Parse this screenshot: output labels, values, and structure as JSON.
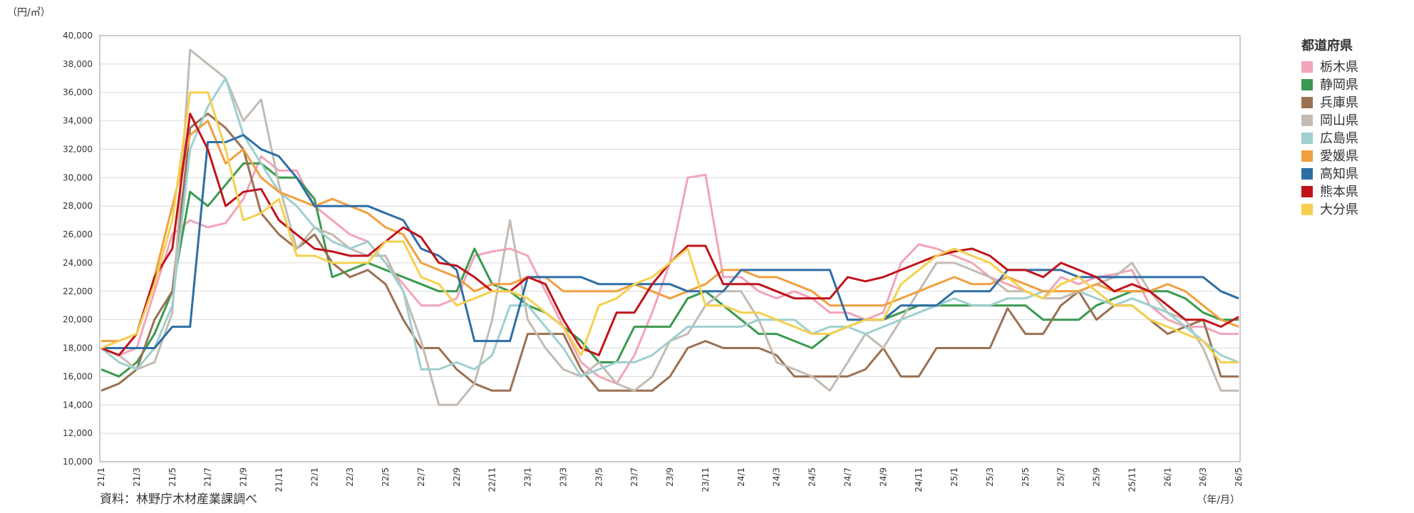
{
  "chart_data": {
    "type": "line",
    "y_unit": "（円/㎥）",
    "x_unit": "（年/月）",
    "source": "資料：林野庁木材産業課調べ",
    "legend_title": "都道府県",
    "legend": "right",
    "grid": true,
    "categories": [
      "21/1",
      null,
      "21/3",
      null,
      "21/5",
      null,
      "21/7",
      null,
      "21/9",
      null,
      "21/11",
      null,
      "22/1",
      null,
      "22/3",
      null,
      "22/5",
      null,
      "22/7",
      null,
      "22/9",
      null,
      "22/11",
      null,
      "23/1",
      null,
      "23/3",
      null,
      "23/5",
      null,
      "23/7",
      null,
      "23/9",
      null,
      "23/11",
      null,
      "24/1",
      null,
      "24/3",
      null,
      "24/5",
      null,
      "24/7",
      null,
      "24/9",
      null,
      "24/11",
      null,
      "25/1",
      null,
      "25/3",
      null,
      "25/5",
      null,
      "25/7",
      null,
      "25/9",
      null,
      "25/11",
      null,
      "26/1",
      null,
      "26/3",
      null,
      "26/5"
    ],
    "ylim": [
      10000,
      40000
    ],
    "yticks": [
      {
        "value": 10000,
        "label": "10,000"
      },
      {
        "value": 12000,
        "label": "12,000"
      },
      {
        "value": 14000,
        "label": "14,000"
      },
      {
        "value": 16000,
        "label": "16,000"
      },
      {
        "value": 18000,
        "label": "18,000"
      },
      {
        "value": 20000,
        "label": "20,000"
      },
      {
        "value": 22000,
        "label": "22,000"
      },
      {
        "value": 24000,
        "label": "24,000"
      },
      {
        "value": 26000,
        "label": "26,000"
      },
      {
        "value": 28000,
        "label": "28,000"
      },
      {
        "value": 30000,
        "label": "30,000"
      },
      {
        "value": 32000,
        "label": "32,000"
      },
      {
        "value": 34000,
        "label": "34,000"
      },
      {
        "value": 36000,
        "label": "36,000"
      },
      {
        "value": 38000,
        "label": "38,000"
      },
      {
        "value": 40000,
        "label": "40,000"
      }
    ],
    "series": [
      {
        "name": "栃木県",
        "color": "#f2a5b8",
        "values": [
          18000,
          17500,
          18000,
          22000,
          26000,
          27000,
          26500,
          26800,
          28500,
          31500,
          30500,
          30500,
          28000,
          27000,
          26000,
          25500,
          24000,
          22500,
          21000,
          21000,
          21500,
          24500,
          24800,
          25000,
          24500,
          22000,
          19500,
          17000,
          16000,
          15500,
          17500,
          20500,
          24000,
          30000,
          30200,
          23000,
          23000,
          22000,
          21500,
          22000,
          21500,
          20500,
          20500,
          20000,
          20500,
          24000,
          25300,
          25000,
          24500,
          24000,
          23000,
          22500,
          22000,
          21500,
          23000,
          22500,
          23000,
          23200,
          23500,
          21000,
          20000,
          19500,
          19500,
          19000,
          19000
        ]
      },
      {
        "name": "静岡県",
        "color": "#3a9a4f",
        "values": [
          16500,
          16000,
          17000,
          19000,
          22000,
          29000,
          28000,
          29500,
          31000,
          31000,
          30000,
          30000,
          28500,
          23000,
          23500,
          24000,
          23500,
          23000,
          22500,
          22000,
          22000,
          25000,
          22500,
          22000,
          21000,
          20500,
          19500,
          18500,
          17000,
          17000,
          19500,
          19500,
          19500,
          21500,
          22000,
          21000,
          20000,
          19000,
          19000,
          18500,
          18000,
          19000,
          19500,
          20000,
          20000,
          20500,
          21000,
          21000,
          21000,
          21000,
          21000,
          21000,
          21000,
          20000,
          20000,
          20000,
          21000,
          21500,
          22000,
          22000,
          22000,
          21500,
          20500,
          20000,
          20000
        ]
      },
      {
        "name": "兵庫県",
        "color": "#9b7153",
        "values": [
          15000,
          15500,
          16500,
          20000,
          22000,
          33500,
          34500,
          33500,
          32000,
          27500,
          26000,
          25000,
          26000,
          24000,
          23000,
          23500,
          22500,
          20000,
          18000,
          18000,
          16500,
          15500,
          15000,
          15000,
          19000,
          19000,
          19000,
          16500,
          15000,
          15000,
          15000,
          15000,
          16000,
          18000,
          18500,
          18000,
          18000,
          18000,
          17500,
          16000,
          16000,
          16000,
          16000,
          16500,
          18000,
          16000,
          16000,
          18000,
          18000,
          18000,
          18000,
          20800,
          19000,
          19000,
          21000,
          22000,
          20000,
          21000,
          21000,
          20000,
          19000,
          19500,
          20000,
          16000,
          16000
        ]
      },
      {
        "name": "岡山県",
        "color": "#c3bbb3",
        "values": [
          18000,
          17500,
          16500,
          17000,
          20500,
          39000,
          38000,
          37000,
          34000,
          35500,
          29500,
          25000,
          26500,
          26000,
          25000,
          24500,
          24500,
          22000,
          18500,
          14000,
          14000,
          15500,
          20000,
          27000,
          20000,
          18000,
          16500,
          16000,
          17000,
          15500,
          15000,
          16000,
          18500,
          19000,
          21000,
          22000,
          22000,
          20000,
          17000,
          16500,
          16000,
          15000,
          17000,
          19000,
          18000,
          20000,
          22000,
          24000,
          24000,
          23500,
          23000,
          22000,
          22000,
          21500,
          21500,
          22000,
          22500,
          23000,
          24000,
          22000,
          20500,
          20000,
          18000,
          15000,
          15000
        ]
      },
      {
        "name": "広島県",
        "color": "#9fcfcf",
        "values": [
          18000,
          17000,
          16500,
          18000,
          21000,
          32000,
          35000,
          37000,
          33000,
          31000,
          29000,
          28000,
          26500,
          25500,
          25000,
          25500,
          24000,
          22000,
          16500,
          16500,
          17000,
          16500,
          17500,
          21000,
          21000,
          19500,
          18000,
          16000,
          16500,
          17000,
          17000,
          17500,
          18500,
          19500,
          19500,
          19500,
          19500,
          20000,
          20000,
          20000,
          19000,
          19500,
          19500,
          19000,
          19500,
          20000,
          20500,
          21000,
          21500,
          21000,
          21000,
          21500,
          21500,
          22000,
          22000,
          22000,
          21500,
          21000,
          21500,
          21000,
          20500,
          19500,
          18500,
          17500,
          17000
        ]
      },
      {
        "name": "愛媛県",
        "color": "#f0a040",
        "values": [
          18500,
          18500,
          19000,
          23000,
          28000,
          33000,
          34000,
          31000,
          32000,
          30000,
          29000,
          28500,
          28000,
          28500,
          28000,
          27500,
          26500,
          26000,
          24000,
          23500,
          23000,
          22000,
          22500,
          22500,
          23000,
          23000,
          22000,
          22000,
          22000,
          22000,
          22500,
          22000,
          21500,
          22000,
          22500,
          23500,
          23500,
          23000,
          23000,
          22500,
          22000,
          21000,
          21000,
          21000,
          21000,
          21500,
          22000,
          22500,
          23000,
          22500,
          22500,
          23000,
          22500,
          22000,
          22000,
          22000,
          22500,
          22000,
          22000,
          22000,
          22500,
          22000,
          21000,
          20000,
          19500
        ]
      },
      {
        "name": "高知県",
        "color": "#2e6ea6",
        "values": [
          18000,
          18000,
          18000,
          18000,
          19500,
          19500,
          32500,
          32500,
          33000,
          32000,
          31500,
          30000,
          28000,
          28000,
          28000,
          28000,
          27500,
          27000,
          25000,
          24500,
          23500,
          18500,
          18500,
          18500,
          23000,
          23000,
          23000,
          23000,
          22500,
          22500,
          22500,
          22500,
          22500,
          22000,
          22000,
          22000,
          23500,
          23500,
          23500,
          23500,
          23500,
          23500,
          20000,
          20000,
          20000,
          21000,
          21000,
          21000,
          22000,
          22000,
          22000,
          23500,
          23500,
          23500,
          23500,
          23000,
          23000,
          23000,
          23000,
          23000,
          23000,
          23000,
          23000,
          22000,
          21500
        ]
      },
      {
        "name": "熊本県",
        "color": "#c0141c",
        "values": [
          18000,
          17500,
          19000,
          23000,
          25000,
          34500,
          32000,
          28000,
          29000,
          29200,
          27000,
          26000,
          25000,
          24800,
          24500,
          24500,
          25500,
          26500,
          25800,
          24000,
          23800,
          23000,
          22000,
          22000,
          23000,
          22500,
          20000,
          18000,
          17500,
          20500,
          20500,
          22500,
          24000,
          25200,
          25200,
          22500,
          22500,
          22500,
          22000,
          21500,
          21500,
          21500,
          23000,
          22700,
          23000,
          23500,
          24000,
          24500,
          24800,
          25000,
          24500,
          23500,
          23500,
          23000,
          24000,
          23500,
          23000,
          22000,
          22500,
          22000,
          21000,
          20000,
          20000,
          19500,
          20200
        ]
      },
      {
        "name": "大分県",
        "color": "#f5d050",
        "values": [
          18000,
          18500,
          19000,
          22500,
          27000,
          36000,
          36000,
          32000,
          27000,
          27500,
          28500,
          24500,
          24500,
          24000,
          24000,
          24000,
          25500,
          25500,
          23000,
          22500,
          21000,
          21500,
          22000,
          22000,
          21500,
          20500,
          19500,
          17500,
          21000,
          21500,
          22500,
          23000,
          24000,
          25000,
          21000,
          21000,
          20500,
          20500,
          20000,
          19500,
          19000,
          19000,
          19500,
          20000,
          20000,
          22500,
          23500,
          24500,
          25000,
          24500,
          24000,
          23000,
          22000,
          21500,
          22500,
          23000,
          22000,
          21000,
          21000,
          20000,
          19500,
          19000,
          18500,
          17000,
          17000
        ]
      }
    ]
  }
}
